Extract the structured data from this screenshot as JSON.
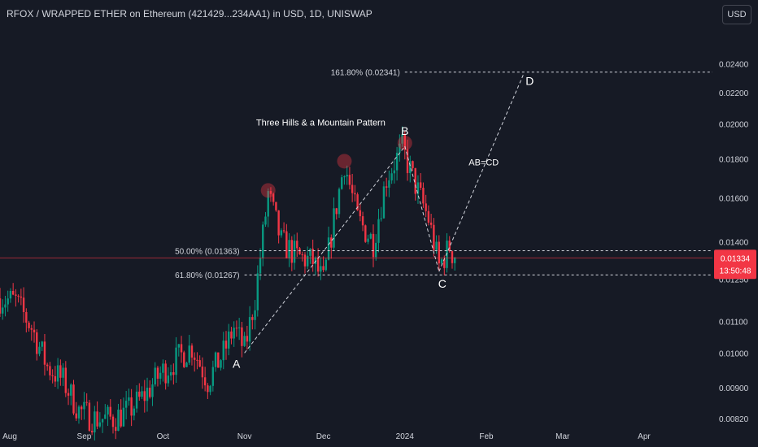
{
  "header": {
    "title": "RFOX / WRAPPED ETHER on Ethereum (421429...234AA1) in USD, 1D, UNISWAP",
    "currency_button": "USD"
  },
  "price_badge": {
    "price": "0.01334",
    "countdown": "13:50:48",
    "color": "#f23645"
  },
  "colors": {
    "background": "#161a25",
    "up": "#089981",
    "down": "#f23645",
    "text": "#d1d4dc",
    "grid": "#1f2330"
  },
  "chart_data": {
    "type": "candlestick",
    "title": "",
    "xlabel": "",
    "ylabel": "",
    "y_scale": "log",
    "ylim": [
      0.0081,
      0.025
    ],
    "x_range": [
      "2023-07-31",
      "2024-04-27"
    ],
    "y_ticks": [
      "0.02400",
      "0.02200",
      "0.02000",
      "0.01800",
      "0.01600",
      "0.01400",
      "0.01250",
      "0.01100",
      "0.01000",
      "0.00900",
      "0.00820"
    ],
    "x_ticks": [
      {
        "label": "Aug",
        "date": "2023-08-01"
      },
      {
        "label": "Sep",
        "date": "2023-09-01"
      },
      {
        "label": "Oct",
        "date": "2023-10-01"
      },
      {
        "label": "Nov",
        "date": "2023-11-01"
      },
      {
        "label": "Dec",
        "date": "2023-12-01"
      },
      {
        "label": "2024",
        "date": "2024-01-01"
      },
      {
        "label": "Feb",
        "date": "2024-02-01"
      },
      {
        "label": "Mar",
        "date": "2024-03-01"
      },
      {
        "label": "Apr",
        "date": "2024-04-01"
      }
    ],
    "grid": false,
    "candle_path": [
      {
        "date": "2023-07-31",
        "price": 0.0118
      },
      {
        "date": "2023-08-06",
        "price": 0.0117
      },
      {
        "date": "2023-08-12",
        "price": 0.0108
      },
      {
        "date": "2023-08-18",
        "price": 0.0096
      },
      {
        "date": "2023-08-24",
        "price": 0.0092
      },
      {
        "date": "2023-08-30",
        "price": 0.0084
      },
      {
        "date": "2023-09-05",
        "price": 0.0082
      },
      {
        "date": "2023-09-12",
        "price": 0.0082
      },
      {
        "date": "2023-09-18",
        "price": 0.0084
      },
      {
        "date": "2023-09-24",
        "price": 0.0088
      },
      {
        "date": "2023-09-30",
        "price": 0.0094
      },
      {
        "date": "2023-10-06",
        "price": 0.0098
      },
      {
        "date": "2023-10-12",
        "price": 0.0102
      },
      {
        "date": "2023-10-18",
        "price": 0.0092
      },
      {
        "date": "2023-10-24",
        "price": 0.01
      },
      {
        "date": "2023-10-28",
        "price": 0.0108
      },
      {
        "date": "2023-11-01",
        "price": 0.0101
      },
      {
        "date": "2023-11-05",
        "price": 0.0118
      },
      {
        "date": "2023-11-10",
        "price": 0.0162
      },
      {
        "date": "2023-11-15",
        "price": 0.014
      },
      {
        "date": "2023-11-21",
        "price": 0.0134
      },
      {
        "date": "2023-11-27",
        "price": 0.0132
      },
      {
        "date": "2023-12-01",
        "price": 0.0124
      },
      {
        "date": "2023-12-05",
        "price": 0.015
      },
      {
        "date": "2023-12-09",
        "price": 0.0178
      },
      {
        "date": "2023-12-14",
        "price": 0.015
      },
      {
        "date": "2023-12-20",
        "price": 0.014
      },
      {
        "date": "2023-12-25",
        "price": 0.017
      },
      {
        "date": "2023-12-31",
        "price": 0.0186
      },
      {
        "date": "2024-01-04",
        "price": 0.017
      },
      {
        "date": "2024-01-10",
        "price": 0.015
      },
      {
        "date": "2024-01-14",
        "price": 0.013
      },
      {
        "date": "2024-01-18",
        "price": 0.0138
      },
      {
        "date": "2024-01-20",
        "price": 0.0133
      }
    ],
    "fib_levels": [
      {
        "label": "161.80% (0.02341)",
        "value": 0.02341
      },
      {
        "label": "50.00% (0.01363)",
        "value": 0.01363
      },
      {
        "label": "61.80% (0.01267)",
        "value": 0.01267
      }
    ],
    "current_price": 0.01334,
    "pattern": [
      {
        "label": "A",
        "date": "2023-11-01",
        "price": 0.01
      },
      {
        "label": "B",
        "date": "2024-01-01",
        "price": 0.0187
      },
      {
        "label": "C",
        "date": "2024-01-14",
        "price": 0.0128
      },
      {
        "label": "D",
        "date": "2024-02-15",
        "price": 0.0232
      }
    ],
    "hills": [
      {
        "date": "2023-11-10",
        "price": 0.0162
      },
      {
        "date": "2023-12-09",
        "price": 0.0177
      },
      {
        "date": "2024-01-01",
        "price": 0.0187
      }
    ],
    "annotations": [
      {
        "text": "Three Hills & a Mountain Pattern",
        "date": "2023-11-30",
        "price": 0.0199
      },
      {
        "text": "AB=CD",
        "date": "2024-01-31",
        "price": 0.01765
      }
    ]
  }
}
